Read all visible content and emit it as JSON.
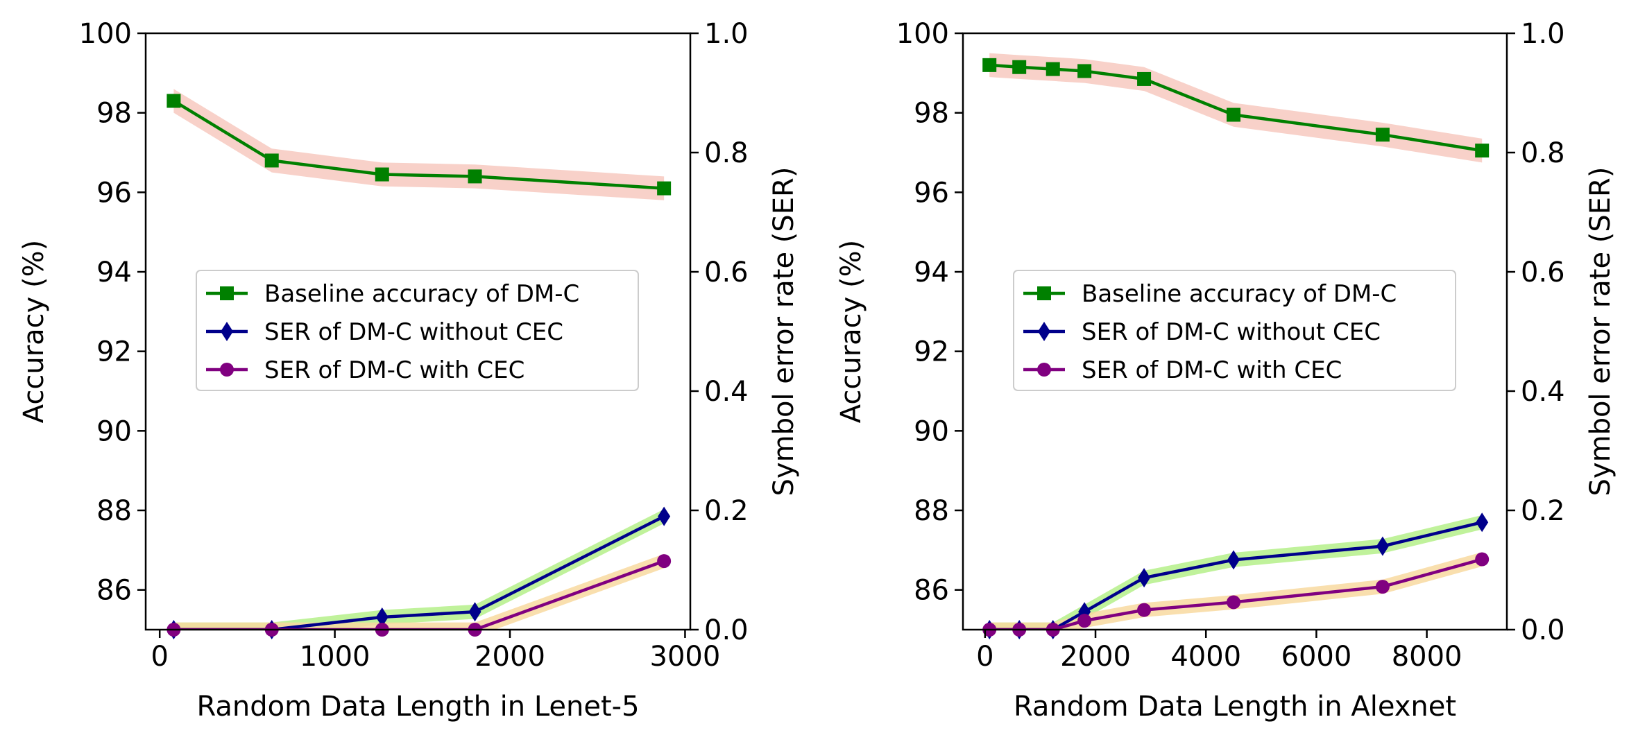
{
  "chart_data": [
    {
      "type": "line",
      "title": "",
      "xlabel": "Random Data Length in Lenet-5",
      "ylabel": "Accuracy (%)",
      "y2label": "Symbol error rate (SER)",
      "xlim": [
        -80,
        3030
      ],
      "ylim": [
        85,
        100
      ],
      "y2lim": [
        0,
        1.0
      ],
      "xticks": [
        0,
        1000,
        2000,
        3000
      ],
      "xtick_labels": [
        "0",
        "1000",
        "2000",
        "3000"
      ],
      "yticks": [
        86,
        88,
        90,
        92,
        94,
        96,
        98,
        100
      ],
      "ytick_labels": [
        "86",
        "88",
        "90",
        "92",
        "94",
        "96",
        "98",
        "100"
      ],
      "y2ticks": [
        0,
        0.2,
        0.4,
        0.6,
        0.8,
        1.0
      ],
      "y2tick_labels": [
        "0.0",
        "0.2",
        "0.4",
        "0.6",
        "0.8",
        "1.0"
      ],
      "legend_position": "center-left",
      "grid": false,
      "series": [
        {
          "name": "Baseline accuracy of DM-C",
          "axis": "left",
          "color": "#008000",
          "band_color": "#f7c9c0",
          "band": 0.3,
          "marker": "square",
          "x": [
            80,
            640,
            1270,
            1800,
            2880
          ],
          "values": [
            98.3,
            96.8,
            96.45,
            96.4,
            96.1
          ]
        },
        {
          "name": "SER of DM-C without CEC",
          "axis": "right",
          "color": "#00008b",
          "band_color": "#b5f08a",
          "band": 0.012,
          "marker": "diamond",
          "x": [
            80,
            640,
            1270,
            1800,
            2880
          ],
          "values": [
            0.0,
            0.0,
            0.021,
            0.03,
            0.19
          ]
        },
        {
          "name": "SER of DM-C with CEC",
          "axis": "right",
          "color": "#800080",
          "band_color": "#f8d9a0",
          "band": 0.012,
          "marker": "circle",
          "x": [
            80,
            640,
            1270,
            1800,
            2880
          ],
          "values": [
            0.0,
            0.0,
            0.0,
            0.0,
            0.115
          ]
        }
      ]
    },
    {
      "type": "line",
      "title": "",
      "xlabel": "Random Data Length in Alexnet",
      "ylabel": "Accuracy (%)",
      "y2label": "Symbol error rate (SER)",
      "xlim": [
        -400,
        9450
      ],
      "ylim": [
        85,
        100
      ],
      "y2lim": [
        0,
        1.0
      ],
      "xticks": [
        0,
        2000,
        4000,
        6000,
        8000
      ],
      "xtick_labels": [
        "0",
        "2000",
        "4000",
        "6000",
        "8000"
      ],
      "yticks": [
        86,
        88,
        90,
        92,
        94,
        96,
        98,
        100
      ],
      "ytick_labels": [
        "86",
        "88",
        "90",
        "92",
        "94",
        "96",
        "98",
        "100"
      ],
      "y2ticks": [
        0,
        0.2,
        0.4,
        0.6,
        0.8,
        1.0
      ],
      "y2tick_labels": [
        "0.0",
        "0.2",
        "0.4",
        "0.6",
        "0.8",
        "1.0"
      ],
      "legend_position": "center-left",
      "grid": false,
      "series": [
        {
          "name": "Baseline accuracy of DM-C",
          "axis": "left",
          "color": "#008000",
          "band_color": "#f7c9c0",
          "band": 0.3,
          "marker": "square",
          "x": [
            80,
            620,
            1230,
            1800,
            2880,
            4500,
            7200,
            9000
          ],
          "values": [
            99.2,
            99.15,
            99.1,
            99.05,
            98.85,
            97.95,
            97.45,
            97.05
          ]
        },
        {
          "name": "SER of DM-C without CEC",
          "axis": "right",
          "color": "#00008b",
          "band_color": "#b5f08a",
          "band": 0.012,
          "marker": "diamond",
          "x": [
            80,
            620,
            1230,
            1800,
            2880,
            4500,
            7200,
            9000
          ],
          "values": [
            0.0,
            0.0,
            0.0,
            0.03,
            0.087,
            0.117,
            0.14,
            0.18
          ]
        },
        {
          "name": "SER of DM-C with CEC",
          "axis": "right",
          "color": "#800080",
          "band_color": "#f8d9a0",
          "band": 0.012,
          "marker": "circle",
          "x": [
            80,
            620,
            1230,
            1800,
            2880,
            4500,
            7200,
            9000
          ],
          "values": [
            0.0,
            0.0,
            0.0,
            0.015,
            0.033,
            0.046,
            0.072,
            0.118
          ]
        }
      ]
    }
  ]
}
